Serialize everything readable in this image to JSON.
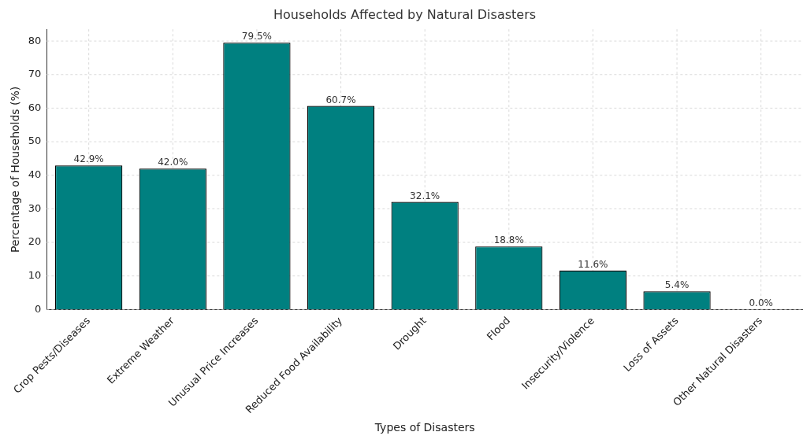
{
  "chart_data": {
    "type": "bar",
    "title": "Households Affected by Natural Disasters",
    "xlabel": "Types of Disasters",
    "ylabel": "Percentage of Households (%)",
    "categories": [
      "Crop Pests/Diseases",
      "Extreme Weather",
      "Unusual Price Increases",
      "Reduced Food Availability",
      "Drought",
      "Flood",
      "Insecurity/Violence",
      "Loss of Assets",
      "Other Natural Disasters"
    ],
    "values": [
      42.9,
      42.0,
      79.5,
      60.7,
      32.1,
      18.8,
      11.6,
      5.4,
      0.0
    ],
    "value_labels": [
      "42.9%",
      "42.0%",
      "79.5%",
      "60.7%",
      "32.1%",
      "18.8%",
      "11.6%",
      "5.4%",
      "0.0%"
    ],
    "color": "#008080",
    "ylim": [
      0,
      83.5
    ],
    "yticks": [
      0,
      10,
      20,
      30,
      40,
      50,
      60,
      70,
      80
    ],
    "grid": true
  }
}
